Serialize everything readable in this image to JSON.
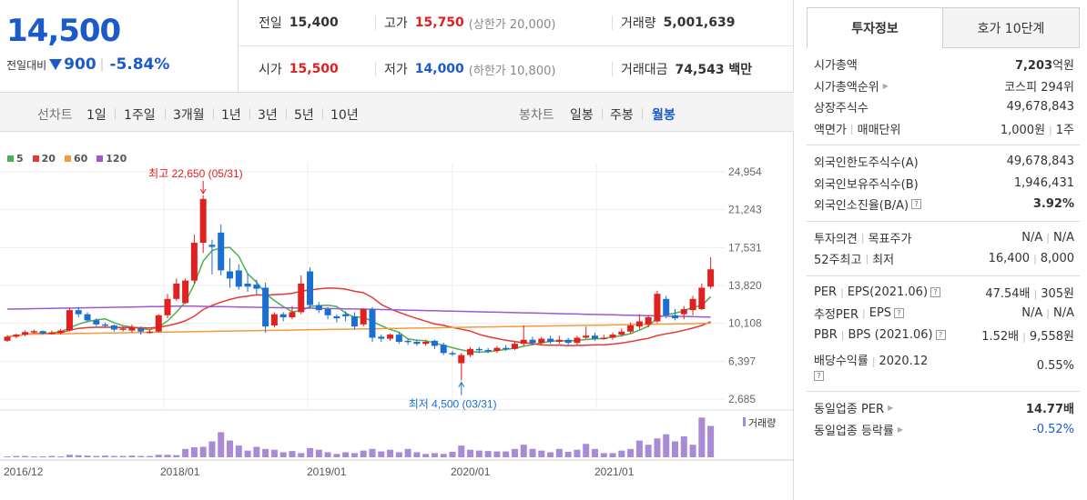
{
  "price": {
    "current": "14,500",
    "change_label": "전일대비",
    "change": "900",
    "rate": "-5.84%"
  },
  "stats": {
    "prev_label": "전일",
    "prev": "15,400",
    "high_label": "고가",
    "high": "15,750",
    "upper_limit": "(상한가 20,000)",
    "volume_label": "거래량",
    "volume": "5,001,639",
    "open_label": "시가",
    "open": "15,500",
    "low_label": "저가",
    "low": "14,000",
    "lower_limit": "(하한가 10,800)",
    "value_label": "거래대금",
    "value": "74,543 백만"
  },
  "period_bar": {
    "line_label": "선차트",
    "line_items": [
      "1일",
      "1주일",
      "3개월",
      "1년",
      "3년",
      "5년",
      "10년"
    ],
    "candle_label": "봉차트",
    "candle_items": [
      "일봉",
      "주봉",
      "월봉"
    ],
    "active_candle": "월봉"
  },
  "chart_data": {
    "type": "candlestick",
    "interval": "monthly",
    "legend": [
      {
        "name": "5",
        "color": "#4caf50"
      },
      {
        "name": "20",
        "color": "#e53935"
      },
      {
        "name": "60",
        "color": "#f39c3c"
      },
      {
        "name": "120",
        "color": "#9b59d0"
      }
    ],
    "y_ticks": [
      "24,954",
      "21,243",
      "17,531",
      "13,820",
      "10,108",
      "6,397",
      "2,685"
    ],
    "y_tick_values": [
      24954,
      21243,
      17531,
      13820,
      10108,
      6397,
      2685
    ],
    "x_ticks": [
      "2016/12",
      "2018/01",
      "2019/01",
      "2020/01",
      "2021/01"
    ],
    "high_annotation": "최고 22,650 (05/31)",
    "low_annotation": "최저 4,500 (03/31)",
    "volume_label": "거래량",
    "candles": [
      {
        "o": 8400,
        "c": 8800,
        "h": 8950,
        "l": 8300
      },
      {
        "o": 8800,
        "c": 9000,
        "h": 9100,
        "l": 8650
      },
      {
        "o": 9000,
        "c": 9250,
        "h": 9400,
        "l": 8850
      },
      {
        "o": 9250,
        "c": 9350,
        "h": 9500,
        "l": 9100
      },
      {
        "o": 9350,
        "c": 9100,
        "h": 9400,
        "l": 9000
      },
      {
        "o": 9100,
        "c": 9200,
        "h": 9400,
        "l": 9000
      },
      {
        "o": 9200,
        "c": 9400,
        "h": 9550,
        "l": 9050
      },
      {
        "o": 9400,
        "c": 11400,
        "h": 11600,
        "l": 9300
      },
      {
        "o": 11400,
        "c": 11000,
        "h": 11700,
        "l": 10700
      },
      {
        "o": 11000,
        "c": 10400,
        "h": 11200,
        "l": 10200
      },
      {
        "o": 10400,
        "c": 10000,
        "h": 10600,
        "l": 9800
      },
      {
        "o": 10000,
        "c": 9900,
        "h": 10200,
        "l": 9700
      },
      {
        "o": 9900,
        "c": 9500,
        "h": 10000,
        "l": 9300
      },
      {
        "o": 9500,
        "c": 9600,
        "h": 9800,
        "l": 9300
      },
      {
        "o": 9400,
        "c": 9700,
        "h": 10000,
        "l": 9200
      },
      {
        "o": 9600,
        "c": 9300,
        "h": 9800,
        "l": 9000
      },
      {
        "o": 9200,
        "c": 9300,
        "h": 9500,
        "l": 9100
      },
      {
        "o": 9300,
        "c": 10900,
        "h": 11000,
        "l": 9200
      },
      {
        "o": 10900,
        "c": 12500,
        "h": 13000,
        "l": 10600
      },
      {
        "o": 12500,
        "c": 14000,
        "h": 14500,
        "l": 12300
      },
      {
        "o": 12100,
        "c": 14300,
        "h": 14500,
        "l": 12000
      },
      {
        "o": 14300,
        "c": 18000,
        "h": 18800,
        "l": 14000
      },
      {
        "o": 18000,
        "c": 22300,
        "h": 22650,
        "l": 17000
      },
      {
        "o": 17800,
        "c": 17600,
        "h": 18300,
        "l": 14900
      },
      {
        "o": 19000,
        "c": 15300,
        "h": 19800,
        "l": 14800
      },
      {
        "o": 15200,
        "c": 14500,
        "h": 16500,
        "l": 13600
      },
      {
        "o": 15300,
        "c": 13700,
        "h": 15900,
        "l": 13400
      },
      {
        "o": 14000,
        "c": 13700,
        "h": 15000,
        "l": 13200
      },
      {
        "o": 13900,
        "c": 13500,
        "h": 14400,
        "l": 13000
      },
      {
        "o": 13600,
        "c": 9800,
        "h": 14100,
        "l": 9200
      },
      {
        "o": 9900,
        "c": 11000,
        "h": 11200,
        "l": 9700
      },
      {
        "o": 11000,
        "c": 10700,
        "h": 11200,
        "l": 10300
      },
      {
        "o": 10700,
        "c": 11200,
        "h": 11800,
        "l": 10500
      },
      {
        "o": 11200,
        "c": 14000,
        "h": 14800,
        "l": 11000
      },
      {
        "o": 15200,
        "c": 11900,
        "h": 15600,
        "l": 11600
      },
      {
        "o": 11900,
        "c": 11400,
        "h": 12200,
        "l": 11100
      },
      {
        "o": 11500,
        "c": 10900,
        "h": 11700,
        "l": 10500
      },
      {
        "o": 10800,
        "c": 10600,
        "h": 11000,
        "l": 10200
      },
      {
        "o": 11000,
        "c": 10800,
        "h": 11300,
        "l": 10300
      },
      {
        "o": 10800,
        "c": 9800,
        "h": 11200,
        "l": 9500
      },
      {
        "o": 10000,
        "c": 11500,
        "h": 11600,
        "l": 9800
      },
      {
        "o": 11500,
        "c": 8700,
        "h": 11700,
        "l": 8300
      },
      {
        "o": 8800,
        "c": 8600,
        "h": 9000,
        "l": 8300
      },
      {
        "o": 8600,
        "c": 9000,
        "h": 9100,
        "l": 8400
      },
      {
        "o": 9000,
        "c": 8300,
        "h": 9200,
        "l": 8100
      },
      {
        "o": 8400,
        "c": 8300,
        "h": 8600,
        "l": 8000
      },
      {
        "o": 8300,
        "c": 8100,
        "h": 8500,
        "l": 7900
      },
      {
        "o": 8100,
        "c": 8300,
        "h": 8500,
        "l": 7900
      },
      {
        "o": 8400,
        "c": 7900,
        "h": 8500,
        "l": 7600
      },
      {
        "o": 8000,
        "c": 7200,
        "h": 8200,
        "l": 7000
      },
      {
        "o": 7200,
        "c": 7100,
        "h": 7400,
        "l": 6900
      },
      {
        "o": 6200,
        "c": 7000,
        "h": 7200,
        "l": 4500
      },
      {
        "o": 7000,
        "c": 7600,
        "h": 7800,
        "l": 6800
      },
      {
        "o": 7600,
        "c": 7500,
        "h": 7800,
        "l": 7200
      },
      {
        "o": 7500,
        "c": 7400,
        "h": 7700,
        "l": 7200
      },
      {
        "o": 7400,
        "c": 7700,
        "h": 7900,
        "l": 7200
      },
      {
        "o": 7700,
        "c": 7600,
        "h": 8000,
        "l": 7400
      },
      {
        "o": 7600,
        "c": 8100,
        "h": 8300,
        "l": 7500
      },
      {
        "o": 8100,
        "c": 8500,
        "h": 9900,
        "l": 7900
      },
      {
        "o": 8500,
        "c": 8200,
        "h": 8800,
        "l": 8000
      },
      {
        "o": 8200,
        "c": 8600,
        "h": 8800,
        "l": 8000
      },
      {
        "o": 8600,
        "c": 8300,
        "h": 8900,
        "l": 8100
      },
      {
        "o": 8300,
        "c": 8500,
        "h": 8900,
        "l": 8100
      },
      {
        "o": 8500,
        "c": 8200,
        "h": 8700,
        "l": 8000
      },
      {
        "o": 8200,
        "c": 8700,
        "h": 8900,
        "l": 8000
      },
      {
        "o": 8700,
        "c": 8900,
        "h": 9800,
        "l": 8600
      },
      {
        "o": 8900,
        "c": 8600,
        "h": 9200,
        "l": 8400
      },
      {
        "o": 8600,
        "c": 8700,
        "h": 9000,
        "l": 8500
      },
      {
        "o": 8700,
        "c": 9000,
        "h": 9200,
        "l": 8500
      },
      {
        "o": 9000,
        "c": 9300,
        "h": 9600,
        "l": 8800
      },
      {
        "o": 9300,
        "c": 9900,
        "h": 10200,
        "l": 9100
      },
      {
        "o": 9800,
        "c": 10300,
        "h": 11000,
        "l": 9500
      },
      {
        "o": 10000,
        "c": 10700,
        "h": 10900,
        "l": 9700
      },
      {
        "o": 10300,
        "c": 13000,
        "h": 13300,
        "l": 10100
      },
      {
        "o": 12500,
        "c": 10900,
        "h": 12800,
        "l": 10600
      },
      {
        "o": 10900,
        "c": 10600,
        "h": 11500,
        "l": 10400
      },
      {
        "o": 11000,
        "c": 11500,
        "h": 11800,
        "l": 10500
      },
      {
        "o": 11400,
        "c": 12500,
        "h": 12800,
        "l": 10900
      },
      {
        "o": 11500,
        "c": 13600,
        "h": 14000,
        "l": 11400
      },
      {
        "o": 13700,
        "c": 15400,
        "h": 16600,
        "l": 13500
      }
    ],
    "volumes": [
      0.02,
      0.03,
      0.03,
      0.02,
      0.02,
      0.03,
      0.02,
      0.06,
      0.05,
      0.04,
      0.03,
      0.04,
      0.03,
      0.03,
      0.04,
      0.03,
      0.03,
      0.06,
      0.06,
      0.05,
      0.2,
      0.24,
      0.25,
      0.38,
      0.6,
      0.4,
      0.28,
      0.16,
      0.25,
      0.2,
      0.18,
      0.12,
      0.15,
      0.1,
      0.22,
      0.18,
      0.12,
      0.08,
      0.12,
      0.1,
      0.16,
      0.2,
      0.14,
      0.18,
      0.12,
      0.2,
      0.12,
      0.08,
      0.1,
      0.08,
      0.13,
      0.28,
      0.18,
      0.16,
      0.15,
      0.14,
      0.14,
      0.2,
      0.3,
      0.2,
      0.16,
      0.12,
      0.2,
      0.13,
      0.18,
      0.32,
      0.2,
      0.1,
      0.1,
      0.16,
      0.2,
      0.4,
      0.3,
      0.45,
      0.55,
      0.38,
      0.5,
      0.3,
      0.95,
      0.75
    ]
  },
  "tabs": {
    "invest": "투자정보",
    "quote": "호가 10단계"
  },
  "info": {
    "market_cap_label": "시가총액",
    "market_cap": "7,203",
    "market_cap_unit": "억원",
    "rank_label": "시가총액순위",
    "rank": "코스피 294위",
    "shares_label": "상장주식수",
    "shares": "49,678,843",
    "par_label": "액면가",
    "unit_label": "매매단위",
    "par": "1,000원",
    "unit": "1주",
    "foreign_limit_label": "외국인한도주식수(A)",
    "foreign_limit": "49,678,843",
    "foreign_hold_label": "외국인보유주식수(B)",
    "foreign_hold": "1,946,431",
    "foreign_rate_label": "외국인소진율(B/A)",
    "foreign_rate": "3.92%",
    "opinion_label": "투자의견",
    "target_label": "목표주가",
    "opinion": "N/A",
    "target": "N/A",
    "w52_high_label": "52주최고",
    "w52_low_label": "최저",
    "w52_high": "16,400",
    "w52_low": "8,000",
    "per_label": "PER",
    "eps_label": "EPS(2021.06)",
    "per": "47.54배",
    "eps": "305원",
    "est_per_label": "추정PER",
    "est_eps_label": "EPS",
    "est_per": "N/A",
    "est_eps": "N/A",
    "pbr_label": "PBR",
    "bps_label": "BPS (2021.06)",
    "pbr": "1.52배",
    "bps": "9,558원",
    "div_label": "배당수익률",
    "div_period": "2020.12",
    "div": "0.55%",
    "ind_per_label": "동일업종 PER",
    "ind_per": "14.77배",
    "ind_rate_label": "동일업종 등락률",
    "ind_rate": "-0.52%"
  }
}
